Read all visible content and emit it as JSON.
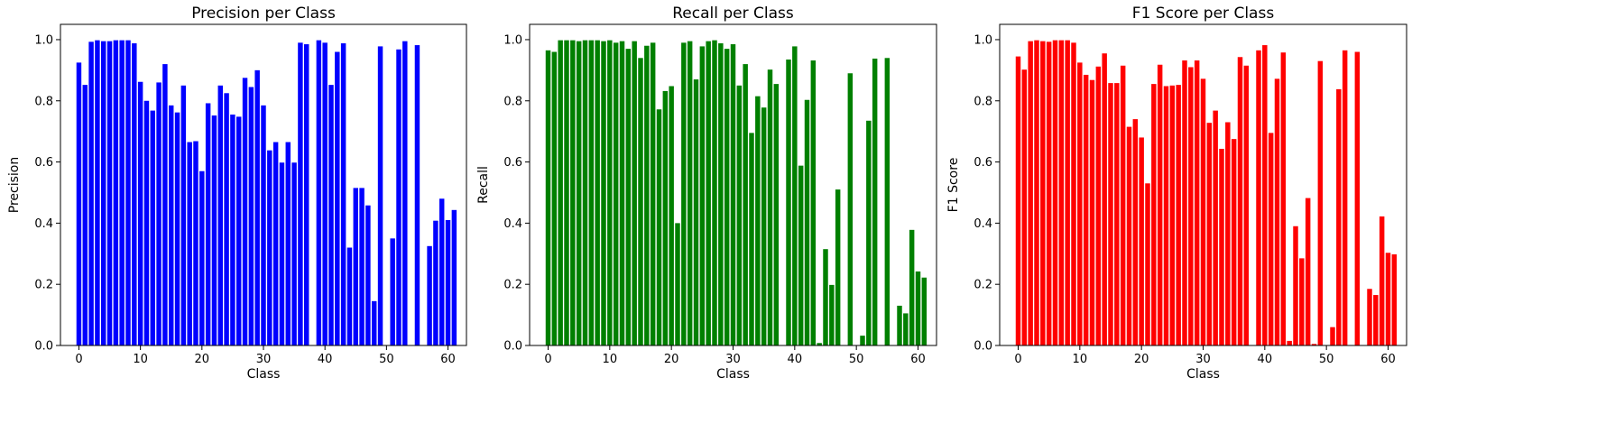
{
  "chart_data": [
    {
      "type": "bar",
      "title": "Precision per Class",
      "xlabel": "Class",
      "ylabel": "Precision",
      "color": "#0000ff",
      "xlim": [
        -3,
        63
      ],
      "ylim": [
        0,
        1.05
      ],
      "xticks": [
        0,
        10,
        20,
        30,
        40,
        50,
        60
      ],
      "yticks": [
        "0.0",
        "0.2",
        "0.4",
        "0.6",
        "0.8",
        "1.0"
      ],
      "grid": false,
      "values": [
        0.925,
        0.852,
        0.993,
        0.998,
        0.995,
        0.995,
        0.998,
        0.998,
        0.998,
        0.988,
        0.862,
        0.8,
        0.768,
        0.86,
        0.92,
        0.785,
        0.762,
        0.85,
        0.665,
        0.668,
        0.57,
        0.792,
        0.752,
        0.85,
        0.825,
        0.755,
        0.748,
        0.875,
        0.845,
        0.9,
        0.785,
        0.638,
        0.665,
        0.598,
        0.665,
        0.598,
        0.99,
        0.985,
        0.0,
        0.998,
        0.99,
        0.852,
        0.96,
        0.988,
        0.32,
        0.515,
        0.515,
        0.458,
        0.145,
        0.978,
        0.0,
        0.35,
        0.968,
        0.995,
        0.0,
        0.982,
        0.0,
        0.325,
        0.408,
        0.48,
        0.41,
        0.443
      ]
    },
    {
      "type": "bar",
      "title": "Recall per Class",
      "xlabel": "Class",
      "ylabel": "Recall",
      "color": "#008000",
      "xlim": [
        -3,
        63
      ],
      "ylim": [
        0,
        1.05
      ],
      "xticks": [
        0,
        10,
        20,
        30,
        40,
        50,
        60
      ],
      "yticks": [
        "0.0",
        "0.2",
        "0.4",
        "0.6",
        "0.8",
        "1.0"
      ],
      "grid": false,
      "values": [
        0.965,
        0.96,
        0.998,
        0.998,
        0.998,
        0.995,
        0.998,
        0.998,
        0.998,
        0.995,
        0.998,
        0.99,
        0.995,
        0.97,
        0.995,
        0.94,
        0.98,
        0.99,
        0.772,
        0.832,
        0.848,
        0.4,
        0.99,
        0.995,
        0.87,
        0.978,
        0.995,
        0.998,
        0.988,
        0.97,
        0.985,
        0.85,
        0.92,
        0.695,
        0.815,
        0.778,
        0.902,
        0.855,
        0.0,
        0.935,
        0.978,
        0.588,
        0.803,
        0.932,
        0.008,
        0.315,
        0.198,
        0.51,
        0.0,
        0.89,
        0.0,
        0.032,
        0.735,
        0.938,
        0.0,
        0.94,
        0.0,
        0.13,
        0.105,
        0.378,
        0.242,
        0.222
      ]
    },
    {
      "type": "bar",
      "title": "F1 Score per Class",
      "xlabel": "Class",
      "ylabel": "F1 Score",
      "color": "#ff0000",
      "xlim": [
        -3,
        63
      ],
      "ylim": [
        0,
        1.05
      ],
      "xticks": [
        0,
        10,
        20,
        30,
        40,
        50,
        60
      ],
      "yticks": [
        "0.0",
        "0.2",
        "0.4",
        "0.6",
        "0.8",
        "1.0"
      ],
      "grid": false,
      "values": [
        0.945,
        0.902,
        0.995,
        0.998,
        0.995,
        0.993,
        0.998,
        0.998,
        0.998,
        0.99,
        0.925,
        0.885,
        0.868,
        0.912,
        0.955,
        0.858,
        0.858,
        0.915,
        0.715,
        0.74,
        0.68,
        0.53,
        0.855,
        0.918,
        0.848,
        0.85,
        0.852,
        0.932,
        0.91,
        0.932,
        0.872,
        0.728,
        0.768,
        0.643,
        0.73,
        0.675,
        0.943,
        0.915,
        0.0,
        0.965,
        0.982,
        0.695,
        0.872,
        0.958,
        0.015,
        0.39,
        0.285,
        0.482,
        0.005,
        0.93,
        0.0,
        0.06,
        0.838,
        0.965,
        0.0,
        0.96,
        0.0,
        0.185,
        0.165,
        0.422,
        0.303,
        0.298
      ]
    }
  ]
}
